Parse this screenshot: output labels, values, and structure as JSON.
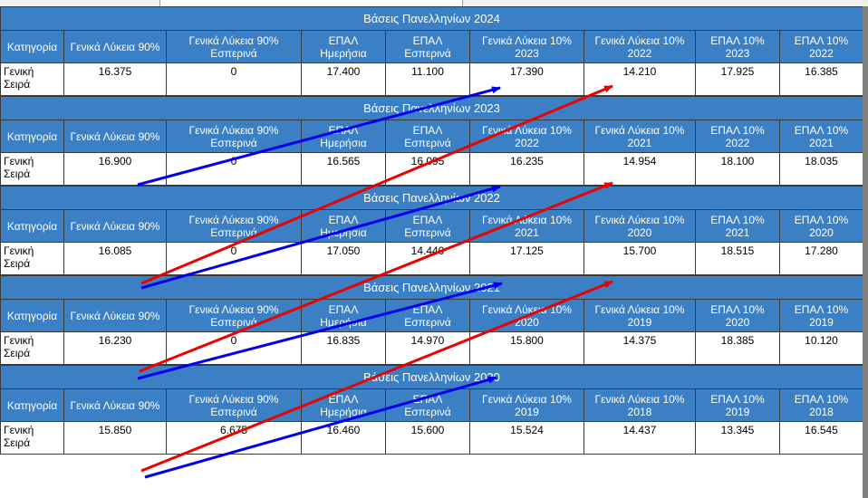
{
  "columns": [
    "Κατηγορία",
    "Γενικά Λύκεια 90%",
    "Γενικά Λύκεια 90% Εσπερινά",
    "ΕΠΑΛ Ημερήσια",
    "ΕΠΑΛ Εσπερινά",
    "Γενικά Λύκεια 10%",
    "Γενικά Λύκεια 10%",
    "ΕΠΑΛ 10%",
    "ΕΠΑΛ 10%"
  ],
  "tables": [
    {
      "title": "Βάσεις Πανελληνίων 2024",
      "year_a": "2023",
      "year_b": "2022",
      "row": {
        "category": "Γενική Σειρά",
        "values": [
          "16.375",
          "0",
          "17.400",
          "11.100",
          "17.390",
          "14.210",
          "17.925",
          "16.385"
        ]
      }
    },
    {
      "title": "Βάσεις Πανελληνίων 2023",
      "year_a": "2022",
      "year_b": "2021",
      "row": {
        "category": "Γενική Σειρά",
        "values": [
          "16.900",
          "0",
          "16.565",
          "16.095",
          "16.235",
          "14.954",
          "18.100",
          "18.035"
        ]
      }
    },
    {
      "title": "Βάσεις Πανελληνίων 2022",
      "year_a": "2021",
      "year_b": "2020",
      "row": {
        "category": "Γενική Σειρά",
        "values": [
          "16.085",
          "0",
          "17.050",
          "14.440",
          "17.125",
          "15.700",
          "18.515",
          "17.280"
        ]
      }
    },
    {
      "title": "Βάσεις Πανελληνίων 2021",
      "year_a": "2020",
      "year_b": "2019",
      "row": {
        "category": "Γενική Σειρά",
        "values": [
          "16.230",
          "0",
          "16.835",
          "14.970",
          "15.800",
          "14.375",
          "18.385",
          "10.120"
        ]
      }
    },
    {
      "title": "Βάσεις Πανελληνίων 2020",
      "year_a": "2019",
      "year_b": "2018",
      "row": {
        "category": "Γενική Σειρά",
        "values": [
          "15.850",
          "6.675",
          "16.460",
          "15.600",
          "15.524",
          "14.437",
          "13.345",
          "16.545"
        ]
      }
    }
  ],
  "colors": {
    "header_blue": "#3b7fc4",
    "arrow_blue": "#0000ee",
    "arrow_red": "#ee0000"
  }
}
